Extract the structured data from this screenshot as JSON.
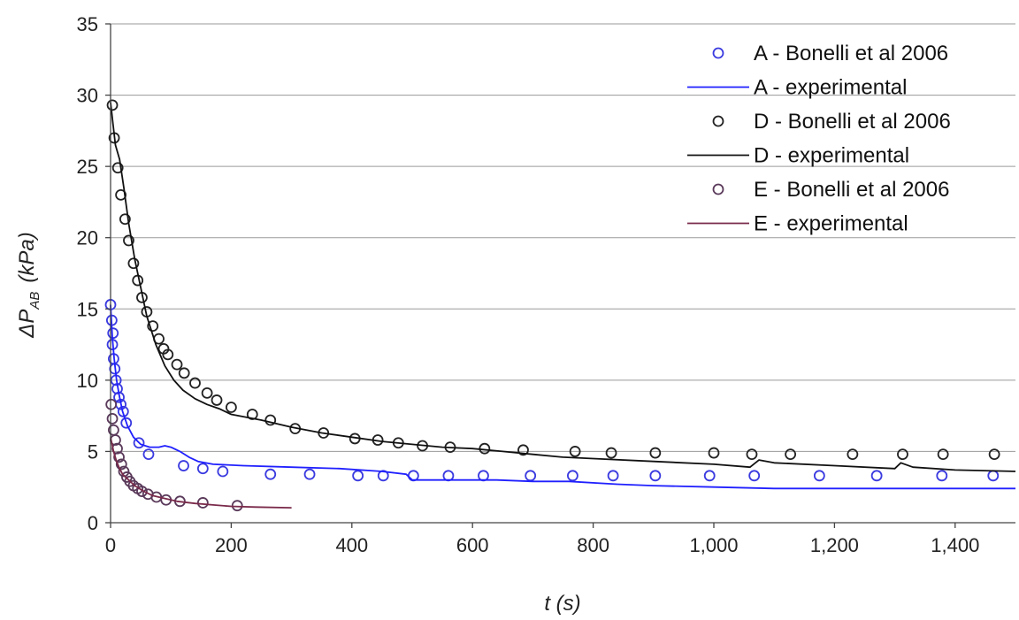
{
  "chart_data": {
    "type": "scatter",
    "title": "",
    "xlabel": "t (s)",
    "ylabel_main": "ΔP",
    "ylabel_sub": "AB",
    "ylabel_unit": "(kPa)",
    "xlim": [
      0,
      1500
    ],
    "ylim": [
      0,
      35
    ],
    "xticks": [
      0,
      200,
      400,
      600,
      800,
      1000,
      1200,
      1400
    ],
    "xtick_labels": [
      "0",
      "200",
      "400",
      "600",
      "800",
      "1,000",
      "1,200",
      "1,400"
    ],
    "yticks": [
      0,
      5,
      10,
      15,
      20,
      25,
      30,
      35
    ],
    "ytick_labels": [
      "0",
      "5",
      "10",
      "15",
      "20",
      "25",
      "30",
      "35"
    ],
    "grid": "horizontal",
    "legend_position": "top-right",
    "series": [
      {
        "name": "A - Bonelli et al 2006",
        "kind": "markers",
        "color": "#3a3ae0",
        "points": [
          [
            0,
            15.3
          ],
          [
            2,
            14.2
          ],
          [
            4,
            13.3
          ],
          [
            3,
            12.5
          ],
          [
            5,
            11.5
          ],
          [
            7,
            10.8
          ],
          [
            9,
            10.0
          ],
          [
            11,
            9.4
          ],
          [
            14,
            8.8
          ],
          [
            17,
            8.3
          ],
          [
            21,
            7.8
          ],
          [
            26,
            7.0
          ],
          [
            47,
            5.6
          ],
          [
            63,
            4.8
          ],
          [
            121,
            4.0
          ],
          [
            153,
            3.8
          ],
          [
            186,
            3.6
          ],
          [
            265,
            3.4
          ],
          [
            330,
            3.4
          ],
          [
            410,
            3.3
          ],
          [
            452,
            3.3
          ],
          [
            502,
            3.3
          ],
          [
            560,
            3.3
          ],
          [
            618,
            3.3
          ],
          [
            696,
            3.3
          ],
          [
            766,
            3.3
          ],
          [
            833,
            3.3
          ],
          [
            903,
            3.3
          ],
          [
            993,
            3.3
          ],
          [
            1067,
            3.3
          ],
          [
            1175,
            3.3
          ],
          [
            1270,
            3.3
          ],
          [
            1378,
            3.3
          ],
          [
            1463,
            3.3
          ]
        ]
      },
      {
        "name": "A - experimental",
        "kind": "line",
        "color": "#2020ff",
        "points": [
          [
            0,
            15.3
          ],
          [
            3,
            13.0
          ],
          [
            6,
            11.5
          ],
          [
            10,
            10.0
          ],
          [
            15,
            8.8
          ],
          [
            20,
            7.8
          ],
          [
            28,
            6.8
          ],
          [
            38,
            6.0
          ],
          [
            50,
            5.5
          ],
          [
            65,
            5.3
          ],
          [
            80,
            5.3
          ],
          [
            90,
            5.4
          ],
          [
            100,
            5.3
          ],
          [
            115,
            5.0
          ],
          [
            130,
            4.6
          ],
          [
            145,
            4.3
          ],
          [
            170,
            4.1
          ],
          [
            220,
            4.0
          ],
          [
            300,
            3.9
          ],
          [
            380,
            3.8
          ],
          [
            450,
            3.6
          ],
          [
            490,
            3.4
          ],
          [
            500,
            3.0
          ],
          [
            560,
            3.0
          ],
          [
            640,
            3.0
          ],
          [
            700,
            2.9
          ],
          [
            760,
            2.9
          ],
          [
            840,
            2.7
          ],
          [
            900,
            2.6
          ],
          [
            1000,
            2.5
          ],
          [
            1100,
            2.4
          ],
          [
            1200,
            2.4
          ],
          [
            1300,
            2.4
          ],
          [
            1400,
            2.4
          ],
          [
            1500,
            2.4
          ]
        ]
      },
      {
        "name": "D - Bonelli et al 2006",
        "kind": "markers",
        "color": "#222222",
        "points": [
          [
            3,
            29.3
          ],
          [
            6,
            27.0
          ],
          [
            12,
            24.9
          ],
          [
            17,
            23.0
          ],
          [
            24,
            21.3
          ],
          [
            30,
            19.8
          ],
          [
            38,
            18.2
          ],
          [
            45,
            17.0
          ],
          [
            52,
            15.8
          ],
          [
            60,
            14.8
          ],
          [
            70,
            13.8
          ],
          [
            80,
            12.9
          ],
          [
            88,
            12.2
          ],
          [
            95,
            11.8
          ],
          [
            110,
            11.1
          ],
          [
            122,
            10.5
          ],
          [
            140,
            9.8
          ],
          [
            160,
            9.1
          ],
          [
            176,
            8.6
          ],
          [
            200,
            8.1
          ],
          [
            235,
            7.6
          ],
          [
            265,
            7.2
          ],
          [
            306,
            6.6
          ],
          [
            353,
            6.3
          ],
          [
            405,
            5.9
          ],
          [
            443,
            5.8
          ],
          [
            477,
            5.6
          ],
          [
            517,
            5.4
          ],
          [
            563,
            5.3
          ],
          [
            620,
            5.2
          ],
          [
            684,
            5.1
          ],
          [
            770,
            5.0
          ],
          [
            830,
            4.9
          ],
          [
            903,
            4.9
          ],
          [
            1000,
            4.9
          ],
          [
            1063,
            4.8
          ],
          [
            1127,
            4.8
          ],
          [
            1230,
            4.8
          ],
          [
            1313,
            4.8
          ],
          [
            1380,
            4.8
          ],
          [
            1465,
            4.8
          ]
        ]
      },
      {
        "name": "D - experimental",
        "kind": "line",
        "color": "#111111",
        "points": [
          [
            0,
            29.5
          ],
          [
            4,
            28.0
          ],
          [
            8,
            26.5
          ],
          [
            15,
            25.5
          ],
          [
            22,
            23.5
          ],
          [
            30,
            21.0
          ],
          [
            40,
            18.5
          ],
          [
            50,
            16.5
          ],
          [
            60,
            14.5
          ],
          [
            75,
            12.5
          ],
          [
            90,
            11.0
          ],
          [
            105,
            10.0
          ],
          [
            120,
            9.3
          ],
          [
            140,
            8.7
          ],
          [
            160,
            8.3
          ],
          [
            180,
            8.0
          ],
          [
            200,
            7.6
          ],
          [
            250,
            7.2
          ],
          [
            300,
            6.7
          ],
          [
            350,
            6.3
          ],
          [
            400,
            6.0
          ],
          [
            450,
            5.7
          ],
          [
            500,
            5.5
          ],
          [
            550,
            5.3
          ],
          [
            600,
            5.2
          ],
          [
            650,
            5.0
          ],
          [
            700,
            4.8
          ],
          [
            750,
            4.6
          ],
          [
            800,
            4.5
          ],
          [
            900,
            4.3
          ],
          [
            1000,
            4.1
          ],
          [
            1060,
            3.9
          ],
          [
            1075,
            4.4
          ],
          [
            1100,
            4.2
          ],
          [
            1200,
            4.0
          ],
          [
            1300,
            3.8
          ],
          [
            1310,
            4.2
          ],
          [
            1330,
            3.9
          ],
          [
            1400,
            3.7
          ],
          [
            1500,
            3.6
          ]
        ]
      },
      {
        "name": "E - Bonelli et al 2006",
        "kind": "markers",
        "color": "#5a3a5a",
        "points": [
          [
            1,
            8.3
          ],
          [
            3,
            7.3
          ],
          [
            5,
            6.5
          ],
          [
            8,
            5.8
          ],
          [
            11,
            5.2
          ],
          [
            14,
            4.6
          ],
          [
            18,
            4.1
          ],
          [
            22,
            3.6
          ],
          [
            27,
            3.2
          ],
          [
            32,
            2.9
          ],
          [
            38,
            2.6
          ],
          [
            45,
            2.4
          ],
          [
            52,
            2.2
          ],
          [
            62,
            2.0
          ],
          [
            76,
            1.8
          ],
          [
            92,
            1.6
          ],
          [
            115,
            1.5
          ],
          [
            153,
            1.4
          ],
          [
            210,
            1.2
          ]
        ]
      },
      {
        "name": "E - experimental",
        "kind": "line",
        "color": "#7a2a4a",
        "points": [
          [
            0,
            6.0
          ],
          [
            5,
            5.0
          ],
          [
            10,
            4.3
          ],
          [
            15,
            3.8
          ],
          [
            20,
            3.4
          ],
          [
            30,
            3.0
          ],
          [
            40,
            2.6
          ],
          [
            55,
            2.2
          ],
          [
            70,
            1.9
          ],
          [
            90,
            1.7
          ],
          [
            110,
            1.5
          ],
          [
            140,
            1.35
          ],
          [
            170,
            1.25
          ],
          [
            200,
            1.15
          ],
          [
            240,
            1.1
          ],
          [
            300,
            1.05
          ]
        ]
      }
    ]
  }
}
